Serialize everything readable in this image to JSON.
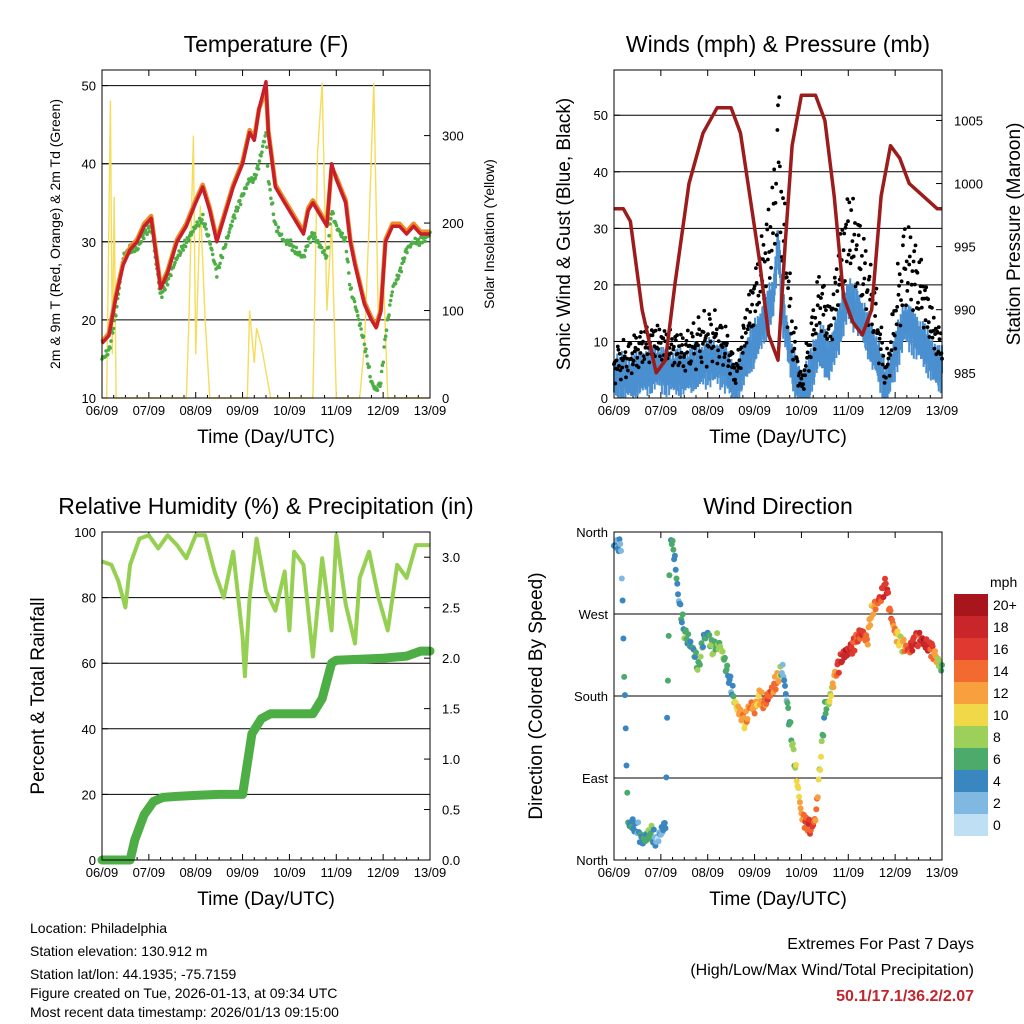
{
  "x_ticks": [
    "06/09",
    "07/09",
    "08/09",
    "09/09",
    "10/09",
    "11/09",
    "12/09",
    "13/09"
  ],
  "time_label": "Time (Day/UTC)",
  "colors": {
    "temp_2m": "#c8202a",
    "temp_9m": "#f08a24",
    "dewpoint": "#4eae46",
    "solar": "#f5dc5a",
    "wind": "#4a90d0",
    "gust": "#000000",
    "pressure": "#9c1c1c",
    "rh": "#96d052",
    "precip": "#4eae46"
  },
  "chart_data": [
    {
      "type": "line",
      "title": "Temperature (F)",
      "xlabel": "Time (Day/UTC)",
      "ylabel": "2m & 9m T (Red, Orange) & 2m Td (Green)",
      "y2label": "Solar Insolation (Yellow)",
      "xlim": [
        0,
        7
      ],
      "ylim": [
        10,
        52
      ],
      "y_ticks": [
        10,
        20,
        30,
        40,
        50
      ],
      "y2lim": [
        0,
        375
      ],
      "y2_ticks": [
        0,
        100,
        200,
        300
      ],
      "series": [
        {
          "name": "2m T",
          "x": [
            0,
            0.15,
            0.3,
            0.45,
            0.6,
            0.75,
            0.9,
            1.05,
            1.25,
            1.4,
            1.6,
            1.8,
            2.0,
            2.15,
            2.3,
            2.45,
            2.6,
            2.8,
            3.0,
            3.15,
            3.25,
            3.35,
            3.5,
            3.55,
            3.7,
            3.9,
            4.0,
            4.1,
            4.3,
            4.4,
            4.5,
            4.7,
            4.8,
            4.9,
            5.0,
            5.2,
            5.3,
            5.4,
            5.6,
            5.75,
            5.85,
            5.95,
            6.05,
            6.2,
            6.35,
            6.5,
            6.65,
            6.8,
            7.0
          ],
          "values": [
            17,
            18,
            23,
            27,
            29,
            30,
            32,
            33,
            24,
            26,
            30,
            32,
            35,
            37,
            34,
            30,
            33,
            37,
            40,
            44,
            43,
            47,
            50.5,
            44,
            37,
            35,
            34,
            33,
            31,
            34,
            35,
            33,
            32,
            40,
            38,
            35,
            30,
            27,
            22,
            20,
            19,
            21,
            30,
            32,
            32,
            31,
            32,
            31,
            31
          ]
        },
        {
          "name": "9m T",
          "x": [
            0,
            0.15,
            0.3,
            0.45,
            0.6,
            0.75,
            0.9,
            1.05,
            1.25,
            1.4,
            1.6,
            1.8,
            2.0,
            2.15,
            2.3,
            2.45,
            2.6,
            2.8,
            3.0,
            3.15,
            3.25,
            3.35,
            3.5,
            3.55,
            3.7,
            3.9,
            4.0,
            4.1,
            4.3,
            4.4,
            4.5,
            4.7,
            4.8,
            4.9,
            5.0,
            5.2,
            5.3,
            5.4,
            5.6,
            5.75,
            5.85,
            5.95,
            6.05,
            6.2,
            6.35,
            6.5,
            6.65,
            6.8,
            7.0
          ],
          "values": [
            17.2,
            18.3,
            23.3,
            27.3,
            29.3,
            30.3,
            32.3,
            33.3,
            24.3,
            26.3,
            30.3,
            32.3,
            35.3,
            37.3,
            34.3,
            30.3,
            33.3,
            37.3,
            40.3,
            44.3,
            43.3,
            47,
            49.5,
            44.3,
            37.3,
            35.3,
            34.3,
            33.3,
            31.3,
            34.3,
            35.3,
            33.3,
            32.3,
            39.5,
            38.3,
            35.3,
            30.3,
            27.3,
            22.3,
            20.3,
            19.3,
            21.3,
            30.3,
            32.3,
            32.3,
            31.3,
            32.3,
            31.3,
            31.3
          ]
        },
        {
          "name": "2m Td",
          "x": [
            0,
            0.15,
            0.3,
            0.45,
            0.6,
            0.75,
            0.9,
            1.05,
            1.25,
            1.4,
            1.6,
            1.8,
            2.0,
            2.15,
            2.3,
            2.45,
            2.6,
            2.8,
            3.0,
            3.15,
            3.25,
            3.35,
            3.5,
            3.55,
            3.7,
            3.9,
            4.0,
            4.1,
            4.3,
            4.4,
            4.5,
            4.7,
            4.8,
            4.9,
            5.0,
            5.2,
            5.3,
            5.4,
            5.6,
            5.75,
            5.85,
            5.95,
            6.05,
            6.2,
            6.35,
            6.5,
            6.65,
            6.8,
            7.0
          ],
          "values": [
            15,
            16,
            21,
            28,
            29,
            29,
            31,
            32,
            23,
            25,
            28,
            30,
            32,
            33,
            30,
            26,
            29,
            33,
            36,
            38,
            38,
            40,
            44,
            38,
            32,
            30,
            30,
            29,
            28,
            30,
            31,
            29,
            28,
            34,
            32,
            30,
            24,
            22,
            17,
            12,
            11,
            12,
            18,
            24,
            26,
            29,
            30,
            30,
            31
          ]
        },
        {
          "name": "Solar Insolation",
          "x": [
            0,
            0.1,
            0.18,
            0.22,
            0.26,
            0.3,
            0.4,
            0.6,
            1.8,
            1.85,
            1.95,
            2.0,
            2.1,
            2.2,
            2.3,
            2.6,
            3.1,
            3.15,
            3.25,
            3.3,
            3.4,
            3.6,
            4.1,
            4.5,
            4.6,
            4.7,
            4.8,
            4.9,
            5.0,
            5.1,
            5.5,
            5.6,
            5.7,
            5.8,
            5.9,
            6.0,
            6.1,
            6.2,
            6.3,
            7.0
          ],
          "values": [
            0,
            0,
            340,
            50,
            230,
            0,
            0,
            0,
            0,
            80,
            300,
            50,
            220,
            90,
            0,
            0,
            0,
            100,
            40,
            80,
            60,
            0,
            0,
            0,
            280,
            360,
            100,
            200,
            0,
            0,
            0,
            60,
            200,
            360,
            80,
            150,
            0,
            0,
            0,
            0
          ]
        }
      ]
    },
    {
      "type": "line",
      "title": "Winds (mph) & Pressure (mb)",
      "xlabel": "Time (Day/UTC)",
      "ylabel": "Sonic Wind & Gust (Blue, Black)",
      "y2label": "Station Pressure (Maroon)",
      "xlim": [
        0,
        7
      ],
      "ylim": [
        0,
        58
      ],
      "y_ticks": [
        0,
        10,
        20,
        30,
        40,
        50
      ],
      "y2lim": [
        983,
        1009
      ],
      "y2_ticks": [
        985,
        990,
        995,
        1000,
        1005
      ],
      "series": [
        {
          "name": "Gust",
          "x": [
            0,
            0.3,
            0.6,
            0.9,
            1.2,
            1.5,
            1.8,
            2.1,
            2.4,
            2.6,
            2.8,
            3.0,
            3.2,
            3.4,
            3.5,
            3.6,
            3.8,
            4.0,
            4.2,
            4.4,
            4.6,
            4.8,
            5.0,
            5.2,
            5.4,
            5.6,
            5.8,
            6.0,
            6.2,
            6.4,
            6.6,
            6.8,
            7.0
          ],
          "values": [
            6,
            7,
            9,
            10,
            9,
            8,
            10,
            11,
            9,
            4,
            12,
            18,
            24,
            30,
            45,
            30,
            12,
            2,
            10,
            18,
            12,
            22,
            30,
            26,
            20,
            14,
            4,
            14,
            24,
            22,
            18,
            12,
            9
          ]
        },
        {
          "name": "Wind",
          "x": [
            0,
            0.3,
            0.6,
            0.9,
            1.2,
            1.5,
            1.8,
            2.1,
            2.4,
            2.6,
            2.8,
            3.0,
            3.2,
            3.4,
            3.5,
            3.6,
            3.8,
            4.0,
            4.2,
            4.4,
            4.6,
            4.8,
            5.0,
            5.2,
            5.4,
            5.6,
            5.8,
            6.0,
            6.2,
            6.4,
            6.6,
            6.8,
            7.0
          ],
          "values": [
            4,
            4,
            5,
            6,
            5,
            5,
            6,
            7,
            6,
            2,
            7,
            10,
            14,
            18,
            28,
            16,
            6,
            1,
            5,
            10,
            7,
            13,
            18,
            16,
            12,
            8,
            2,
            8,
            14,
            12,
            10,
            7,
            5
          ]
        },
        {
          "name": "Pressure",
          "x": [
            0,
            0.2,
            0.35,
            0.6,
            0.9,
            1.1,
            1.3,
            1.6,
            1.9,
            2.2,
            2.5,
            2.7,
            2.9,
            3.1,
            3.3,
            3.5,
            3.65,
            3.8,
            4.0,
            4.1,
            4.3,
            4.5,
            4.7,
            4.9,
            5.1,
            5.3,
            5.5,
            5.7,
            5.9,
            6.1,
            6.3,
            6.6,
            6.9,
            7.0
          ],
          "values": [
            998,
            998,
            997,
            990,
            985,
            986,
            992,
            1000,
            1004,
            1006,
            1006,
            1004,
            999,
            994,
            988,
            986,
            995,
            1003,
            1007,
            1007,
            1007,
            1005,
            999,
            991,
            989,
            988,
            990,
            999,
            1003,
            1002,
            1000,
            999,
            998,
            998
          ]
        }
      ]
    },
    {
      "type": "line",
      "title": "Relative Humidity (%) & Precipitation (in)",
      "xlabel": "Time (Day/UTC)",
      "ylabel": "Percent & Total Rainfall",
      "xlim": [
        0,
        7
      ],
      "ylim": [
        0,
        100
      ],
      "y_ticks": [
        0,
        20,
        40,
        60,
        80,
        100
      ],
      "y2lim": [
        0,
        3.25
      ],
      "y2_ticks": [
        "0.0",
        "0.5",
        "1.0",
        "1.5",
        "2.0",
        "2.5",
        "3.0"
      ],
      "series": [
        {
          "name": "Relative Humidity",
          "x": [
            0,
            0.2,
            0.35,
            0.5,
            0.6,
            0.8,
            1.0,
            1.2,
            1.4,
            1.6,
            1.8,
            2.0,
            2.2,
            2.4,
            2.6,
            2.8,
            3.0,
            3.05,
            3.15,
            3.3,
            3.5,
            3.7,
            3.9,
            4.0,
            4.1,
            4.3,
            4.5,
            4.7,
            4.9,
            5.0,
            5.2,
            5.4,
            5.5,
            5.7,
            5.9,
            6.1,
            6.3,
            6.5,
            6.7,
            6.8,
            7.0
          ],
          "values": [
            91,
            90,
            85,
            77,
            90,
            98,
            99,
            95,
            99,
            96,
            92,
            99,
            99,
            88,
            80,
            94,
            68,
            56,
            80,
            98,
            82,
            76,
            88,
            70,
            94,
            90,
            62,
            92,
            70,
            99,
            78,
            66,
            86,
            94,
            80,
            70,
            90,
            86,
            96,
            96,
            96
          ]
        },
        {
          "name": "Total Rainfall",
          "x": [
            0,
            0.3,
            0.6,
            0.7,
            0.9,
            1.1,
            1.3,
            1.6,
            2.0,
            2.5,
            3.0,
            3.2,
            3.4,
            3.6,
            4.0,
            4.5,
            4.7,
            4.9,
            5.0,
            5.5,
            6.0,
            6.5,
            6.8,
            7.0
          ],
          "values": [
            0,
            0,
            0,
            0.2,
            0.45,
            0.58,
            0.62,
            0.63,
            0.64,
            0.65,
            0.65,
            1.25,
            1.4,
            1.45,
            1.45,
            1.45,
            1.6,
            1.95,
            1.98,
            1.99,
            2.0,
            2.02,
            2.07,
            2.07
          ]
        }
      ]
    },
    {
      "type": "scatter",
      "title": "Wind Direction",
      "xlabel": "Time (Day/UTC)",
      "ylabel": "Direction (Colored By Speed)",
      "xlim": [
        0,
        7
      ],
      "ylim": [
        0,
        360
      ],
      "y_ticks": [
        "North",
        "East",
        "South",
        "West",
        "North"
      ],
      "colorbar_title": "mph",
      "colorbar_labels": [
        "20+",
        "18",
        "16",
        "14",
        "12",
        "10",
        "8",
        "6",
        "4",
        "2",
        "0"
      ],
      "colorbar_colors": [
        "#a8151c",
        "#c8262a",
        "#e0392f",
        "#f26a30",
        "#f8a03e",
        "#f0d848",
        "#9cd05a",
        "#4caa6a",
        "#3a86c0",
        "#7fb8e0",
        "#bfe0f4"
      ],
      "series": [
        {
          "name": "Direction",
          "x": [
            0.15,
            0.3,
            0.5,
            0.6,
            0.8,
            0.9,
            1.1,
            1.2,
            1.3,
            1.35,
            1.4,
            1.5,
            1.6,
            1.7,
            1.8,
            1.9,
            2.0,
            2.1,
            2.2,
            2.3,
            2.5,
            2.6,
            2.7,
            2.8,
            2.9,
            3.0,
            3.1,
            3.2,
            3.3,
            3.5,
            3.6,
            4.0,
            4.1,
            4.2,
            4.3,
            4.5,
            4.6,
            4.7,
            4.8,
            4.9,
            5.0,
            5.1,
            5.2,
            5.3,
            5.4,
            5.5,
            5.6,
            5.7,
            5.8,
            5.9,
            6.0,
            6.1,
            6.2,
            6.3,
            6.4,
            6.5,
            6.6,
            6.7,
            6.8,
            7.0
          ],
          "speed": [
            4,
            6,
            4,
            6,
            8,
            3,
            5,
            7,
            6,
            4,
            5,
            7,
            6,
            5,
            8,
            7,
            6,
            9,
            8,
            10,
            3,
            11,
            13,
            12,
            14,
            13,
            12,
            15,
            16,
            14,
            3,
            12,
            16,
            17,
            15,
            6,
            10,
            13,
            17,
            18,
            19,
            16,
            15,
            18,
            14,
            12,
            15,
            17,
            19,
            16,
            14,
            9,
            13,
            16,
            18,
            17,
            19,
            18,
            16,
            7
          ],
          "values": [
            345,
            40,
            35,
            20,
            30,
            20,
            40,
            360,
            330,
            300,
            280,
            250,
            240,
            230,
            210,
            240,
            250,
            230,
            240,
            230,
            190,
            170,
            160,
            150,
            170,
            165,
            180,
            170,
            180,
            200,
            210,
            50,
            40,
            35,
            45,
            165,
            175,
            200,
            215,
            225,
            230,
            235,
            245,
            250,
            240,
            275,
            280,
            290,
            305,
            270,
            250,
            240,
            235,
            230,
            240,
            245,
            240,
            235,
            230,
            210
          ]
        }
      ]
    }
  ],
  "info": {
    "location": "Location: Philadelphia",
    "elevation": "Station elevation: 130.912 m",
    "latlon": "Station lat/lon: 44.1935; -75.7159",
    "created": "Figure created on Tue, 2026-01-13, at 09:34 UTC",
    "recent": "Most recent data timestamp: 2026/01/13 09:15:00"
  },
  "extremes": {
    "title": "Extremes For Past 7 Days",
    "subtitle": "(High/Low/Max Wind/Total Precipitation)",
    "values": "50.1/17.1/36.2/2.07"
  }
}
